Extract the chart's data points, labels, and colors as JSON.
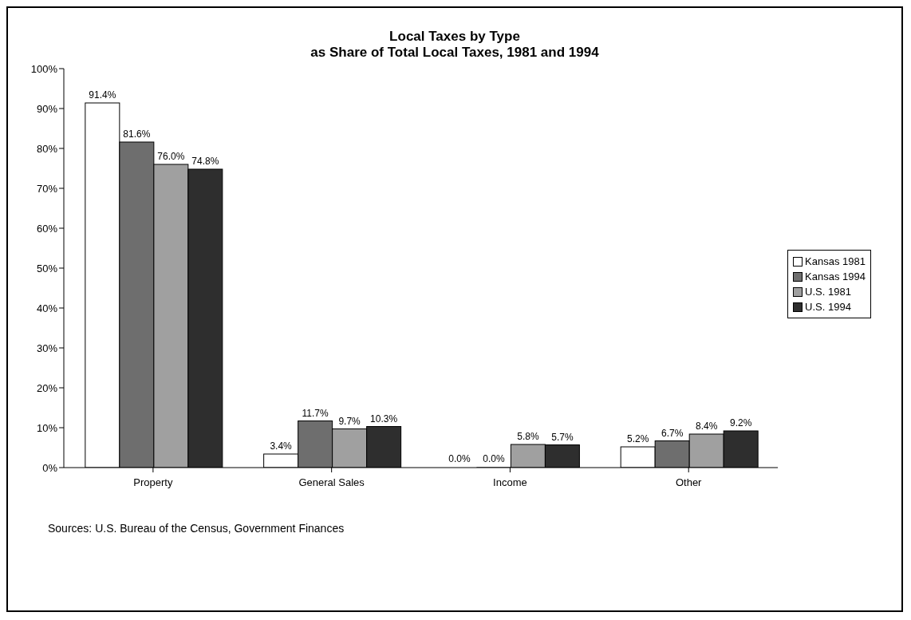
{
  "chart_data": {
    "type": "bar",
    "title": "Local Taxes by Type",
    "subtitle": "as Share of Total Local Taxes, 1981 and 1994",
    "categories": [
      "Property",
      "General Sales",
      "Income",
      "Other"
    ],
    "series": [
      {
        "name": "Kansas 1981",
        "color": "#ffffff",
        "values": [
          91.4,
          3.4,
          0.0,
          5.2
        ],
        "value_labels": [
          "91.4%",
          "3.4%",
          "0.0%",
          "5.2%"
        ]
      },
      {
        "name": "Kansas 1994",
        "color": "#6e6e6e",
        "values": [
          81.6,
          11.7,
          0.0,
          6.7
        ],
        "value_labels": [
          "81.6%",
          "11.7%",
          "0.0%",
          "6.7%"
        ]
      },
      {
        "name": "U.S. 1981",
        "color": "#a0a0a0",
        "values": [
          76.0,
          9.7,
          5.8,
          8.4
        ],
        "value_labels": [
          "76.0%",
          "9.7%",
          "5.8%",
          "8.4%"
        ]
      },
      {
        "name": "U.S. 1994",
        "color": "#2e2e2e",
        "values": [
          74.8,
          10.3,
          5.7,
          9.2
        ],
        "value_labels": [
          "74.8%",
          "10.3%",
          "5.7%",
          "9.2%"
        ]
      }
    ],
    "ylim": [
      0,
      100
    ],
    "yticks": [
      {
        "value": 0,
        "label": "0%"
      },
      {
        "value": 10,
        "label": "10%"
      },
      {
        "value": 20,
        "label": "20%"
      },
      {
        "value": 30,
        "label": "30%"
      },
      {
        "value": 40,
        "label": "40%"
      },
      {
        "value": 50,
        "label": "50%"
      },
      {
        "value": 60,
        "label": "60%"
      },
      {
        "value": 70,
        "label": "70%"
      },
      {
        "value": 80,
        "label": "80%"
      },
      {
        "value": 90,
        "label": "90%"
      },
      {
        "value": 100,
        "label": "100%"
      }
    ],
    "grid": false,
    "legend": "right",
    "annotations": [
      "Sources: U.S. Bureau of the Census, Government Finances"
    ]
  }
}
